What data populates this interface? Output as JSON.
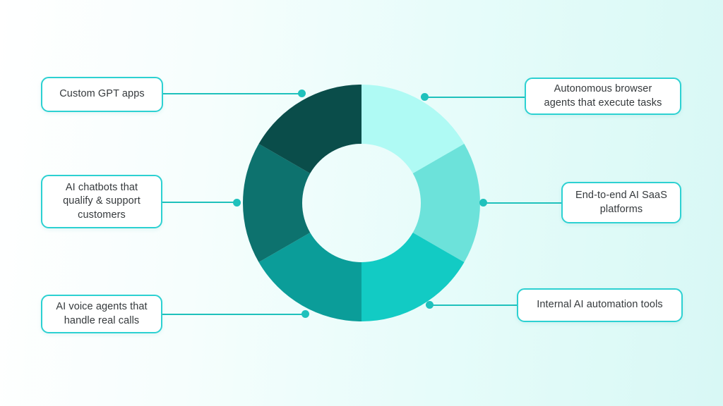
{
  "chart_data": {
    "type": "pie",
    "subtype": "donut",
    "title": "",
    "legend": "none",
    "direction": "clockwise",
    "start_angle_deg": 0,
    "equal_segments": true,
    "segments": [
      {
        "label": "Autonomous browser agents that execute tasks",
        "value": 16.67,
        "color": "#affaf4",
        "position": "top-right"
      },
      {
        "label": "End-to-end AI SaaS platforms",
        "value": 16.67,
        "color": "#6ce2da",
        "position": "right"
      },
      {
        "label": "Internal AI automation tools",
        "value": 16.67,
        "color": "#12cbc4",
        "position": "bottom-right"
      },
      {
        "label": "AI voice agents that handle real calls",
        "value": 16.67,
        "color": "#0b9d99",
        "position": "bottom-left"
      },
      {
        "label": "AI chatbots that qualify & support customers",
        "value": 16.67,
        "color": "#0d726e",
        "position": "left"
      },
      {
        "label": "Custom GPT apps",
        "value": 16.67,
        "color": "#0a4d4a",
        "position": "top-left"
      }
    ]
  },
  "callouts": {
    "top_left": {
      "text": "Custom GPT apps"
    },
    "mid_left": {
      "text": "AI chatbots that qualify & support customers"
    },
    "bottom_left": {
      "text": "AI voice agents that handle real calls"
    },
    "top_right": {
      "text": "Autonomous browser agents that execute tasks"
    },
    "mid_right": {
      "text": "End-to-end AI SaaS platforms"
    },
    "bottom_right": {
      "text": "Internal AI automation tools"
    }
  },
  "style": {
    "connector_color": "#1fc1bc",
    "dot_color": "#1fc1bc",
    "box_border_color": "#2dd1d2",
    "box_background": "#ffffff",
    "text_color": "#35393c",
    "background_left": "#ffffff",
    "background_right": "#d8f8f5"
  }
}
